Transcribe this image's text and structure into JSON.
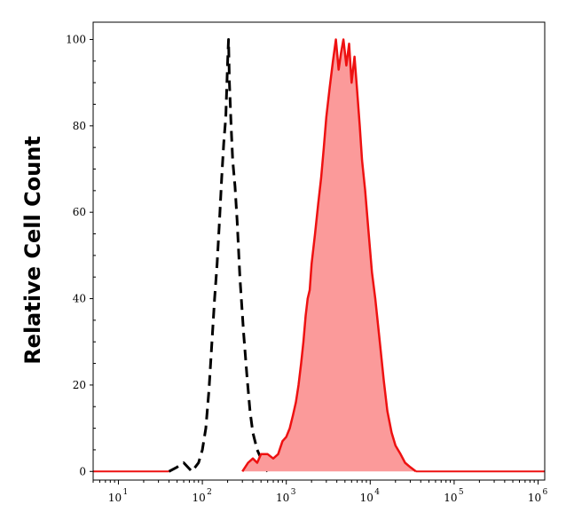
{
  "chart_data": {
    "type": "area",
    "title": "",
    "xlabel": "",
    "ylabel": "Relative Cell Count",
    "x_scale": "log",
    "xlim": [
      5,
      1200000
    ],
    "ylim": [
      -2,
      104
    ],
    "y_ticks": [
      0,
      20,
      40,
      60,
      80,
      100
    ],
    "x_ticks": [
      {
        "value": 10,
        "base": "10",
        "exp": "1"
      },
      {
        "value": 100,
        "base": "10",
        "exp": "2"
      },
      {
        "value": 1000,
        "base": "10",
        "exp": "3"
      },
      {
        "value": 10000,
        "base": "10",
        "exp": "4"
      },
      {
        "value": 100000,
        "base": "10",
        "exp": "5"
      },
      {
        "value": 1000000,
        "base": "10",
        "exp": "6"
      }
    ],
    "grid": false,
    "series": [
      {
        "style": "dashed-line",
        "color": "#000000",
        "points": [
          [
            40,
            0
          ],
          [
            50,
            1
          ],
          [
            60,
            2
          ],
          [
            75,
            0
          ],
          [
            90,
            2
          ],
          [
            100,
            5
          ],
          [
            110,
            10
          ],
          [
            120,
            19
          ],
          [
            130,
            30
          ],
          [
            140,
            40
          ],
          [
            150,
            48
          ],
          [
            160,
            58
          ],
          [
            170,
            68
          ],
          [
            180,
            76
          ],
          [
            190,
            82
          ],
          [
            200,
            95
          ],
          [
            205,
            100
          ],
          [
            210,
            90
          ],
          [
            220,
            80
          ],
          [
            230,
            72
          ],
          [
            245,
            66
          ],
          [
            260,
            58
          ],
          [
            280,
            45
          ],
          [
            310,
            32
          ],
          [
            340,
            22
          ],
          [
            370,
            14
          ],
          [
            400,
            9
          ],
          [
            450,
            5
          ],
          [
            500,
            3
          ],
          [
            550,
            1
          ],
          [
            600,
            0
          ]
        ]
      },
      {
        "style": "filled-area",
        "color": "#ee1111",
        "fill": "#fb9a9a",
        "points": [
          [
            300,
            0
          ],
          [
            350,
            2
          ],
          [
            400,
            3
          ],
          [
            450,
            2
          ],
          [
            500,
            4
          ],
          [
            600,
            4
          ],
          [
            700,
            3
          ],
          [
            800,
            4
          ],
          [
            900,
            7
          ],
          [
            1000,
            8
          ],
          [
            1100,
            10
          ],
          [
            1200,
            13
          ],
          [
            1300,
            16
          ],
          [
            1400,
            20
          ],
          [
            1500,
            25
          ],
          [
            1600,
            30
          ],
          [
            1700,
            36
          ],
          [
            1800,
            40
          ],
          [
            1900,
            42
          ],
          [
            2000,
            48
          ],
          [
            2200,
            55
          ],
          [
            2400,
            62
          ],
          [
            2600,
            68
          ],
          [
            2800,
            75
          ],
          [
            3000,
            82
          ],
          [
            3300,
            89
          ],
          [
            3600,
            95
          ],
          [
            3900,
            100
          ],
          [
            4200,
            93
          ],
          [
            4500,
            97
          ],
          [
            4800,
            100
          ],
          [
            5200,
            94
          ],
          [
            5600,
            99
          ],
          [
            6000,
            90
          ],
          [
            6500,
            96
          ],
          [
            7000,
            88
          ],
          [
            7500,
            80
          ],
          [
            8000,
            72
          ],
          [
            8700,
            65
          ],
          [
            9500,
            56
          ],
          [
            10500,
            46
          ],
          [
            11500,
            40
          ],
          [
            13000,
            30
          ],
          [
            14500,
            21
          ],
          [
            16000,
            14
          ],
          [
            18000,
            9
          ],
          [
            20000,
            6
          ],
          [
            23000,
            4
          ],
          [
            26000,
            2
          ],
          [
            30000,
            1
          ],
          [
            35000,
            0
          ]
        ]
      }
    ]
  }
}
